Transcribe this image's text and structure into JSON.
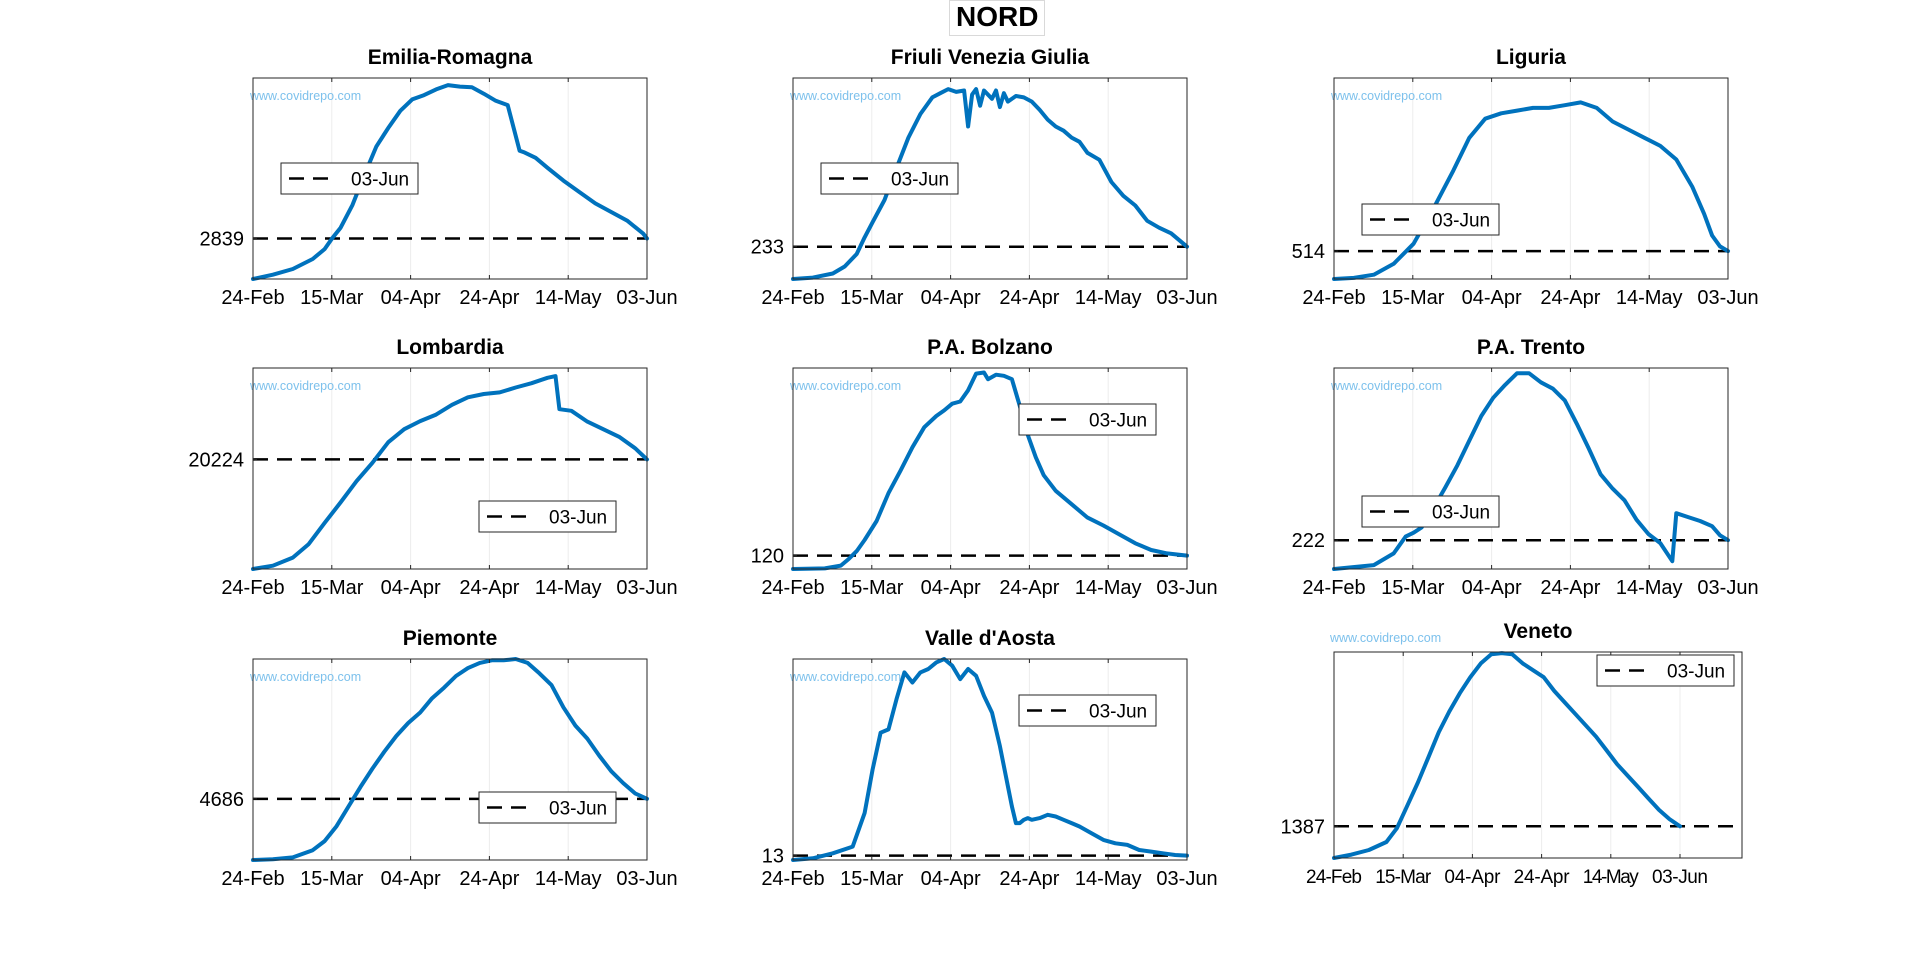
{
  "figure": {
    "suptitle": "NORD",
    "watermark": "www.covidrepo.com",
    "legend_label": "03-Jun",
    "colors": {
      "line": "#0072BD",
      "ref": "#000000",
      "watermark": "#7DC1EC",
      "grid": "#ececec",
      "axes": "#262626"
    }
  },
  "chart_data": [
    {
      "type": "line",
      "title": "Emilia-Romagna",
      "x_ticks": [
        "24-Feb",
        "15-Mar",
        "04-Apr",
        "24-Apr",
        "14-May",
        "03-Jun"
      ],
      "y_tick": "2839",
      "ref_value": 2839,
      "ylim": [
        0,
        14100
      ],
      "legend": "upper-left",
      "x_days": [
        0,
        5,
        10,
        15,
        18,
        20,
        22,
        25,
        28,
        31,
        34,
        37,
        40,
        43,
        46,
        49,
        52,
        55,
        58,
        61,
        64,
        67,
        68,
        71,
        74,
        78,
        82,
        86,
        90,
        94,
        98,
        99
      ],
      "values": [
        0,
        300,
        700,
        1400,
        2100,
        2900,
        3600,
        5200,
        7300,
        9300,
        10600,
        11800,
        12600,
        12900,
        13300,
        13600,
        13500,
        13450,
        13000,
        12500,
        12200,
        9000,
        8900,
        8500,
        7800,
        6900,
        6100,
        5300,
        4700,
        4100,
        3200,
        2839
      ]
    },
    {
      "type": "line",
      "title": "Friuli Venezia Giulia",
      "x_ticks": [
        "24-Feb",
        "15-Mar",
        "04-Apr",
        "24-Apr",
        "14-May",
        "03-Jun"
      ],
      "y_tick": "233",
      "ref_value": 233,
      "ylim": [
        0,
        1450
      ],
      "legend": "upper-left",
      "x_days": [
        0,
        5,
        10,
        13,
        16,
        18,
        20,
        23,
        26,
        29,
        32,
        35,
        37,
        39,
        41,
        43,
        44,
        45,
        46,
        47,
        48,
        50,
        51,
        52,
        53,
        54,
        56,
        58,
        60,
        62,
        64,
        66,
        68,
        70,
        72,
        74,
        77,
        80,
        83,
        86,
        89,
        92,
        95,
        99
      ],
      "values": [
        0,
        10,
        40,
        90,
        180,
        300,
        410,
        570,
        800,
        1020,
        1190,
        1310,
        1340,
        1370,
        1350,
        1360,
        1100,
        1330,
        1370,
        1250,
        1360,
        1300,
        1360,
        1240,
        1340,
        1280,
        1320,
        1310,
        1280,
        1220,
        1150,
        1100,
        1070,
        1020,
        990,
        910,
        860,
        700,
        600,
        530,
        420,
        370,
        330,
        233
      ]
    },
    {
      "type": "line",
      "title": "Liguria",
      "x_ticks": [
        "24-Feb",
        "15-Mar",
        "04-Apr",
        "24-Apr",
        "14-May",
        "03-Jun"
      ],
      "y_tick": "514",
      "ref_value": 514,
      "ylim": [
        0,
        3700
      ],
      "legend": "lower-left",
      "x_days": [
        0,
        5,
        10,
        15,
        20,
        25,
        30,
        34,
        38,
        42,
        46,
        50,
        54,
        58,
        62,
        66,
        70,
        74,
        78,
        82,
        86,
        90,
        93,
        95,
        97,
        99
      ],
      "values": [
        0,
        20,
        80,
        280,
        650,
        1300,
        2000,
        2600,
        2950,
        3050,
        3100,
        3150,
        3150,
        3200,
        3250,
        3150,
        2900,
        2750,
        2600,
        2450,
        2200,
        1700,
        1200,
        800,
        600,
        514
      ]
    },
    {
      "type": "line",
      "title": "Lombardia",
      "x_ticks": [
        "24-Feb",
        "15-Mar",
        "04-Apr",
        "24-Apr",
        "14-May",
        "03-Jun"
      ],
      "y_tick": "20224",
      "ref_value": 20224,
      "ylim": [
        0,
        37100
      ],
      "legend": "lower-right",
      "x_days": [
        0,
        5,
        10,
        14,
        18,
        22,
        26,
        30,
        34,
        38,
        42,
        46,
        50,
        54,
        58,
        62,
        66,
        70,
        74,
        76,
        77,
        80,
        84,
        88,
        92,
        96,
        99
      ],
      "values": [
        0,
        600,
        2100,
        4600,
        8500,
        12300,
        16200,
        19600,
        23400,
        25800,
        27300,
        28500,
        30300,
        31700,
        32300,
        32600,
        33500,
        34300,
        35300,
        35600,
        29500,
        29200,
        27200,
        25800,
        24400,
        22300,
        20224
      ]
    },
    {
      "type": "line",
      "title": "P.A. Bolzano",
      "x_ticks": [
        "24-Feb",
        "15-Mar",
        "04-Apr",
        "24-Apr",
        "14-May",
        "03-Jun"
      ],
      "y_tick": "120",
      "ref_value": 120,
      "ylim": [
        0,
        1800
      ],
      "legend": "upper-right",
      "x_days": [
        0,
        8,
        12,
        14,
        16,
        18,
        21,
        24,
        27,
        30,
        33,
        36,
        38,
        40,
        42,
        44,
        46,
        48,
        49,
        51,
        53,
        55,
        57,
        59,
        61,
        63,
        66,
        70,
        74,
        78,
        82,
        86,
        90,
        94,
        99
      ],
      "values": [
        0,
        5,
        30,
        90,
        160,
        260,
        430,
        680,
        880,
        1090,
        1270,
        1370,
        1420,
        1480,
        1500,
        1600,
        1750,
        1760,
        1700,
        1740,
        1730,
        1700,
        1460,
        1200,
        1000,
        840,
        700,
        580,
        460,
        390,
        310,
        230,
        170,
        140,
        120
      ]
    },
    {
      "type": "line",
      "title": "P.A. Trento",
      "x_ticks": [
        "24-Feb",
        "15-Mar",
        "04-Apr",
        "24-Apr",
        "14-May",
        "03-Jun"
      ],
      "y_tick": "222",
      "ref_value": 222,
      "ylim": [
        0,
        1550
      ],
      "legend": "lower-left",
      "x_days": [
        0,
        10,
        15,
        18,
        20,
        22,
        25,
        28,
        31,
        34,
        37,
        40,
        43,
        46,
        49,
        52,
        55,
        58,
        61,
        64,
        67,
        70,
        73,
        76,
        79,
        82,
        85,
        86,
        89,
        92,
        95,
        97,
        99
      ],
      "values": [
        0,
        30,
        120,
        250,
        280,
        320,
        470,
        630,
        800,
        990,
        1180,
        1320,
        1420,
        1510,
        1510,
        1440,
        1390,
        1300,
        1120,
        930,
        730,
        620,
        530,
        380,
        270,
        200,
        60,
        430,
        400,
        370,
        330,
        260,
        222
      ]
    },
    {
      "type": "line",
      "title": "Piemonte",
      "x_ticks": [
        "24-Feb",
        "15-Mar",
        "04-Apr",
        "24-Apr",
        "14-May",
        "03-Jun"
      ],
      "y_tick": "4686",
      "ref_value": 4686,
      "ylim": [
        0,
        15400
      ],
      "legend": "lower-right",
      "x_days": [
        0,
        5,
        10,
        15,
        18,
        21,
        24,
        27,
        30,
        33,
        36,
        39,
        42,
        45,
        48,
        51,
        54,
        57,
        60,
        63,
        66,
        69,
        72,
        75,
        78,
        81,
        84,
        87,
        90,
        93,
        96,
        99
      ],
      "values": [
        0,
        50,
        200,
        750,
        1450,
        2600,
        4100,
        5600,
        7000,
        8300,
        9500,
        10500,
        11300,
        12400,
        13200,
        14100,
        14700,
        15100,
        15300,
        15300,
        15400,
        15100,
        14300,
        13400,
        11700,
        10300,
        9300,
        8000,
        6800,
        5900,
        5100,
        4686
      ]
    },
    {
      "type": "line",
      "title": "Valle d'Aosta",
      "x_ticks": [
        "24-Feb",
        "15-Mar",
        "04-Apr",
        "24-Apr",
        "14-May",
        "03-Jun"
      ],
      "y_tick": "13",
      "ref_value": 13,
      "ylim": [
        0,
        600
      ],
      "legend": "upper-right",
      "x_days": [
        0,
        5,
        10,
        15,
        18,
        20,
        22,
        24,
        26,
        28,
        30,
        32,
        34,
        36,
        38,
        40,
        42,
        44,
        46,
        48,
        50,
        52,
        54,
        55,
        56,
        57,
        58,
        59,
        60,
        62,
        64,
        66,
        68,
        70,
        72,
        75,
        78,
        81,
        84,
        87,
        90,
        93,
        96,
        99
      ],
      "values": [
        0,
        5,
        20,
        40,
        140,
        270,
        380,
        390,
        480,
        560,
        530,
        560,
        570,
        590,
        600,
        580,
        540,
        570,
        550,
        490,
        440,
        340,
        220,
        160,
        110,
        110,
        120,
        125,
        120,
        125,
        135,
        130,
        120,
        110,
        100,
        80,
        60,
        50,
        45,
        30,
        25,
        20,
        15,
        13
      ]
    },
    {
      "type": "line",
      "title": "Veneto",
      "x_ticks": [
        "24-Feb",
        "15-Mar",
        "04-Apr",
        "24-Apr",
        "14-May",
        "03-Jun"
      ],
      "y_tick": "1387",
      "ref_value": 1387,
      "ylim": [
        0,
        9000
      ],
      "legend": "upper-right",
      "x_days": [
        0,
        5,
        10,
        15,
        18,
        21,
        24,
        27,
        30,
        33,
        36,
        39,
        42,
        45,
        48,
        51,
        54,
        57,
        60,
        63,
        66,
        69,
        72,
        75,
        78,
        81,
        84,
        87,
        90,
        93,
        96,
        99
      ],
      "values": [
        0,
        150,
        350,
        700,
        1300,
        2300,
        3300,
        4400,
        5500,
        6400,
        7200,
        7900,
        8500,
        8900,
        8950,
        8900,
        8500,
        8200,
        7900,
        7300,
        6800,
        6300,
        5800,
        5300,
        4700,
        4100,
        3600,
        3100,
        2600,
        2100,
        1700,
        1387
      ]
    }
  ]
}
